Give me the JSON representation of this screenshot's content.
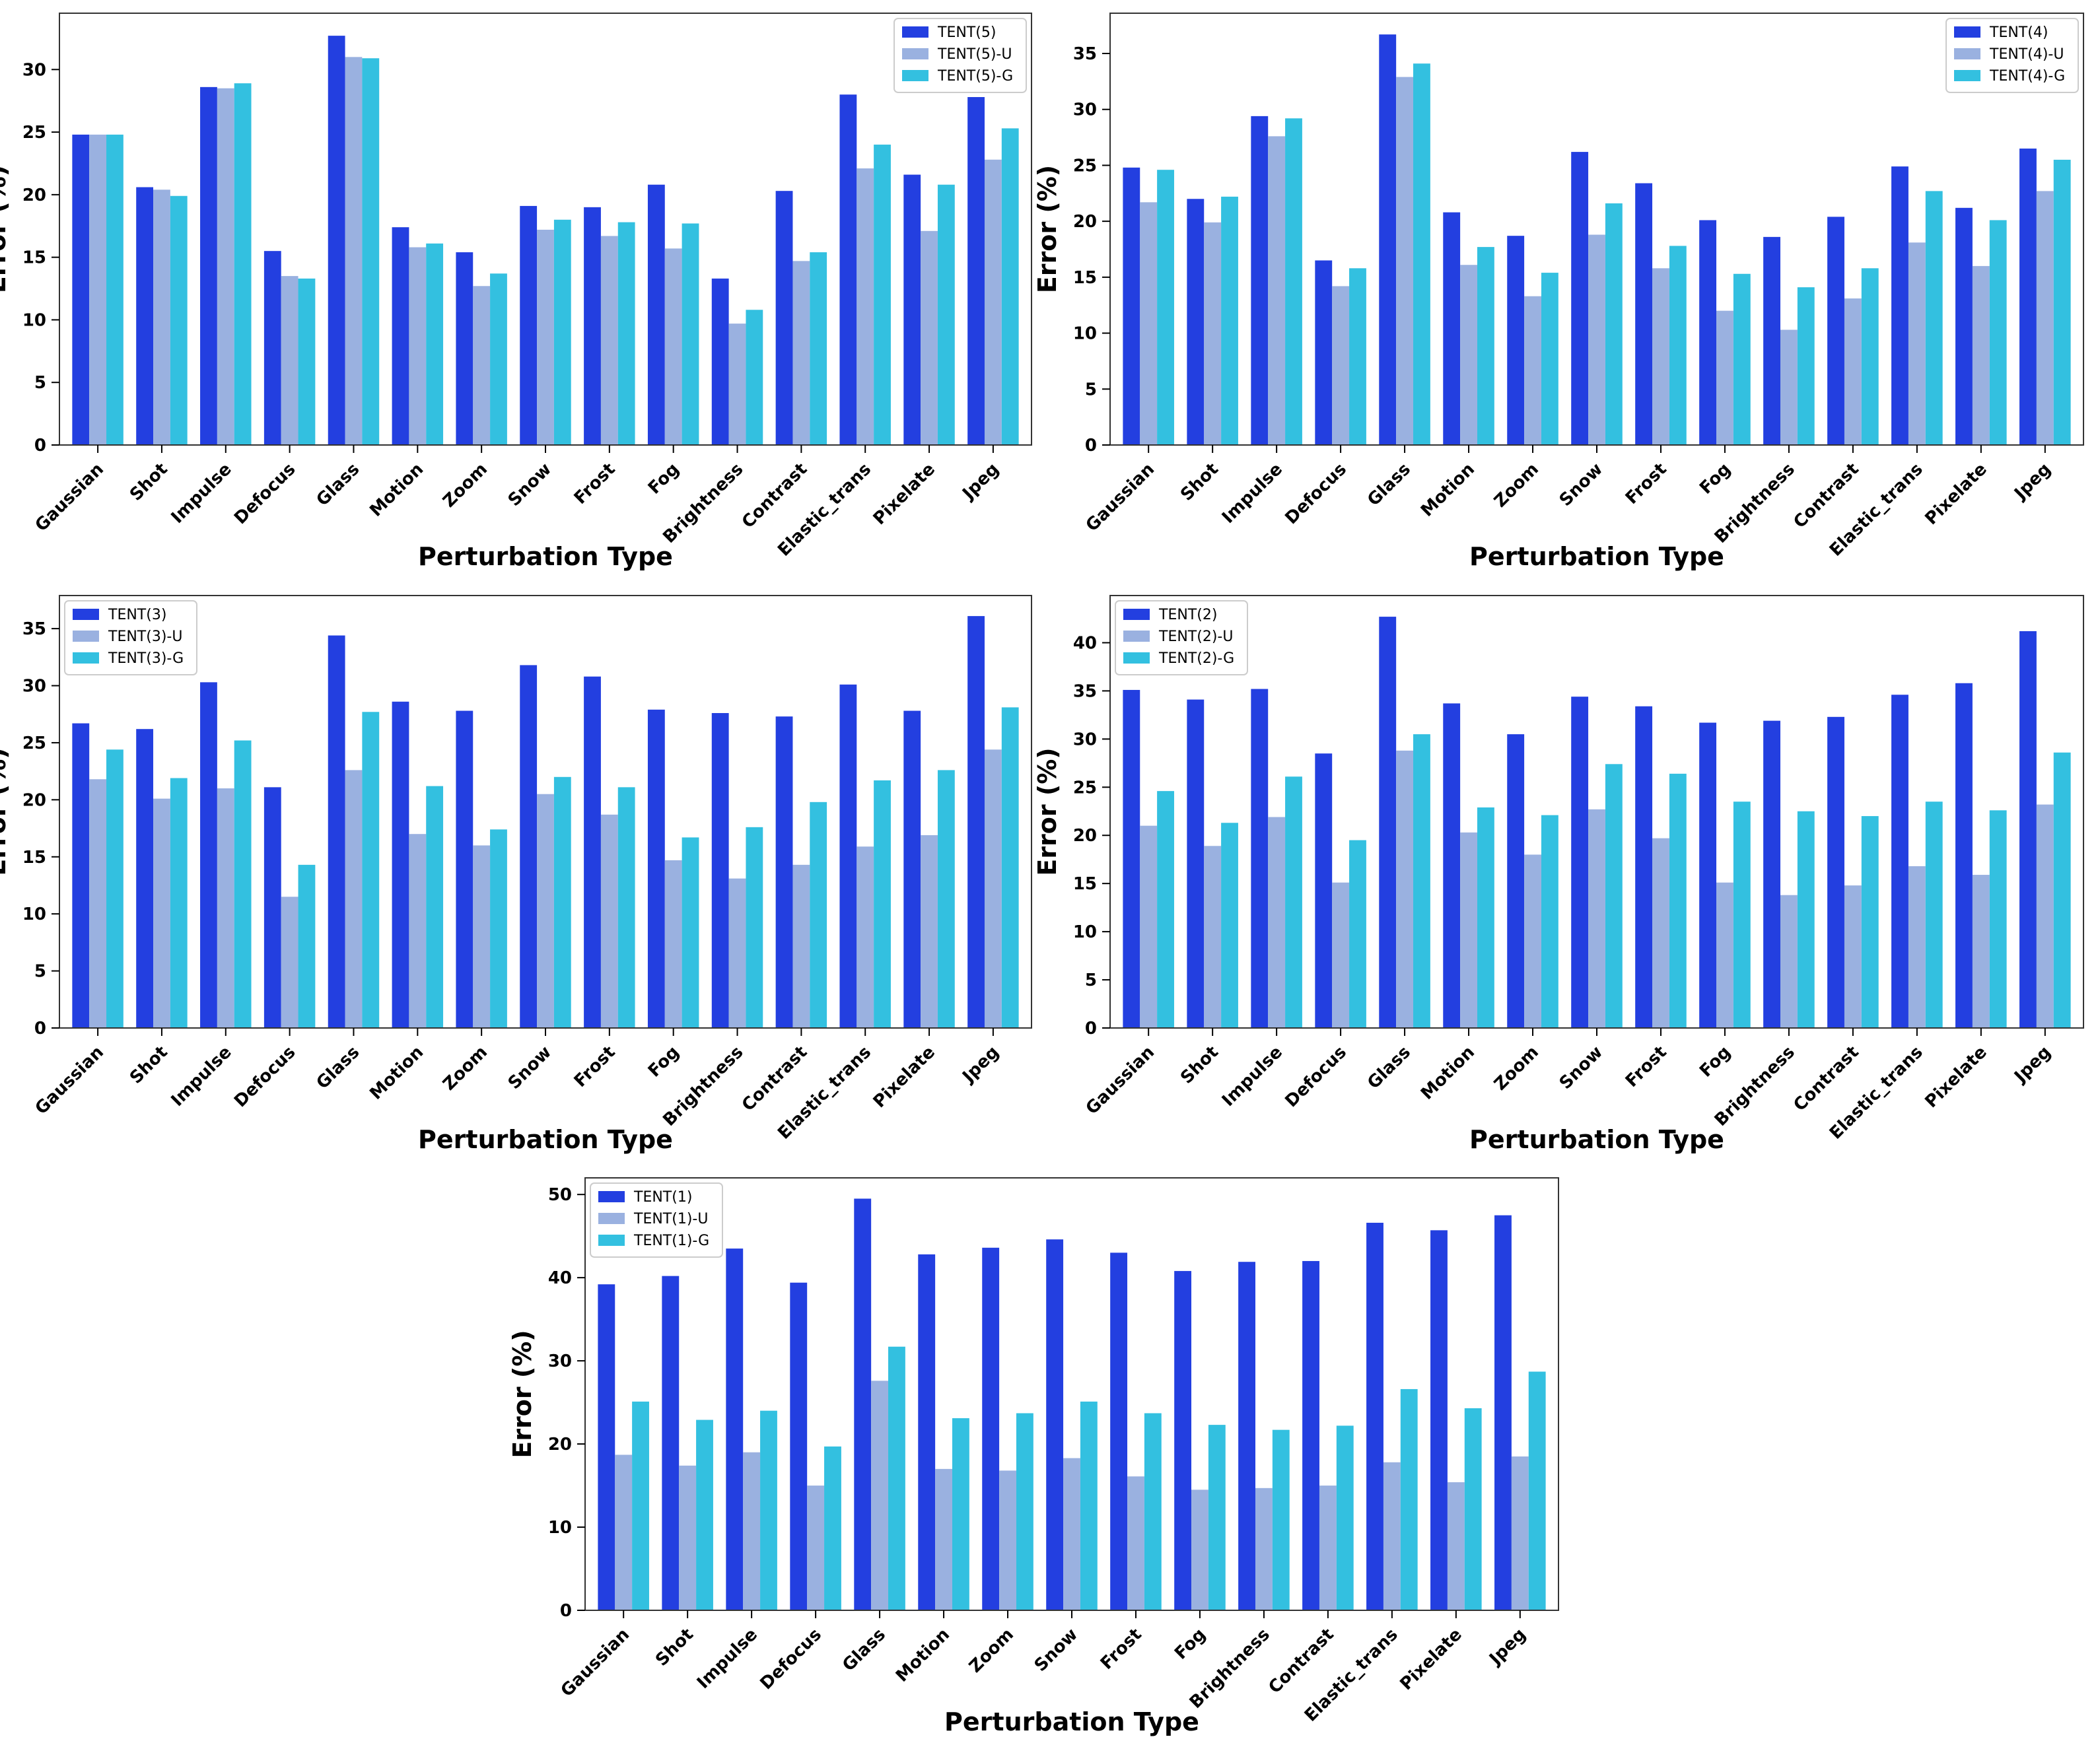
{
  "colors": {
    "base": "#233fe0",
    "u": "#9ab1e0",
    "g": "#33c0e0"
  },
  "chart_data": [
    {
      "type": "bar",
      "title": "",
      "xlabel": "Perturbation Type",
      "ylabel": "Error (%)",
      "ylim": [
        0,
        34.5
      ],
      "yticks": [
        0,
        5,
        10,
        15,
        20,
        25,
        30
      ],
      "legend_position": "top-right",
      "categories": [
        "Gaussian",
        "Shot",
        "Impulse",
        "Defocus",
        "Glass",
        "Motion",
        "Zoom",
        "Snow",
        "Frost",
        "Fog",
        "Brightness",
        "Contrast",
        "Elastic_trans",
        "Pixelate",
        "Jpeg"
      ],
      "series": [
        {
          "name": "TENT(5)",
          "color_key": "base",
          "values": [
            24.8,
            20.6,
            28.6,
            15.5,
            32.7,
            17.4,
            15.4,
            19.1,
            19.0,
            20.8,
            13.3,
            20.3,
            28.0,
            21.6,
            27.8
          ]
        },
        {
          "name": "TENT(5)-U",
          "color_key": "u",
          "values": [
            24.8,
            20.4,
            28.5,
            13.5,
            31.0,
            15.8,
            12.7,
            17.2,
            16.7,
            15.7,
            9.7,
            14.7,
            22.1,
            17.1,
            22.8
          ]
        },
        {
          "name": "TENT(5)-G",
          "color_key": "g",
          "values": [
            24.8,
            19.9,
            28.9,
            13.3,
            30.9,
            16.1,
            13.7,
            18.0,
            17.8,
            17.7,
            10.8,
            15.4,
            24.0,
            20.8,
            25.3
          ]
        }
      ]
    },
    {
      "type": "bar",
      "title": "",
      "xlabel": "Perturbation Type",
      "ylabel": "Error (%)",
      "ylim": [
        0,
        38.6
      ],
      "yticks": [
        0,
        5,
        10,
        15,
        20,
        25,
        30,
        35
      ],
      "legend_position": "top-right",
      "categories": [
        "Gaussian",
        "Shot",
        "Impulse",
        "Defocus",
        "Glass",
        "Motion",
        "Zoom",
        "Snow",
        "Frost",
        "Fog",
        "Brightness",
        "Contrast",
        "Elastic_trans",
        "Pixelate",
        "Jpeg"
      ],
      "series": [
        {
          "name": "TENT(4)",
          "color_key": "base",
          "values": [
            24.8,
            22.0,
            29.4,
            16.5,
            36.7,
            20.8,
            18.7,
            26.2,
            23.4,
            20.1,
            18.6,
            20.4,
            24.9,
            21.2,
            26.5
          ]
        },
        {
          "name": "TENT(4)-U",
          "color_key": "u",
          "values": [
            21.7,
            19.9,
            27.6,
            14.2,
            32.9,
            16.1,
            13.3,
            18.8,
            15.8,
            12.0,
            10.3,
            13.1,
            18.1,
            16.0,
            22.7
          ]
        },
        {
          "name": "TENT(4)-G",
          "color_key": "g",
          "values": [
            24.6,
            22.2,
            29.2,
            15.8,
            34.1,
            17.7,
            15.4,
            21.6,
            17.8,
            15.3,
            14.1,
            15.8,
            22.7,
            20.1,
            25.5
          ]
        }
      ]
    },
    {
      "type": "bar",
      "title": "",
      "xlabel": "Perturbation Type",
      "ylabel": "Error (%)",
      "ylim": [
        0,
        37.9
      ],
      "yticks": [
        0,
        5,
        10,
        15,
        20,
        25,
        30,
        35
      ],
      "legend_position": "top-left",
      "categories": [
        "Gaussian",
        "Shot",
        "Impulse",
        "Defocus",
        "Glass",
        "Motion",
        "Zoom",
        "Snow",
        "Frost",
        "Fog",
        "Brightness",
        "Contrast",
        "Elastic_trans",
        "Pixelate",
        "Jpeg"
      ],
      "series": [
        {
          "name": "TENT(3)",
          "color_key": "base",
          "values": [
            26.7,
            26.2,
            30.3,
            21.1,
            34.4,
            28.6,
            27.8,
            31.8,
            30.8,
            27.9,
            27.6,
            27.3,
            30.1,
            27.8,
            36.1
          ]
        },
        {
          "name": "TENT(3)-U",
          "color_key": "u",
          "values": [
            21.8,
            20.1,
            21.0,
            11.5,
            22.6,
            17.0,
            16.0,
            20.5,
            18.7,
            14.7,
            13.1,
            14.3,
            15.9,
            16.9,
            24.4
          ]
        },
        {
          "name": "TENT(3)-G",
          "color_key": "g",
          "values": [
            24.4,
            21.9,
            25.2,
            14.3,
            27.7,
            21.2,
            17.4,
            22.0,
            21.1,
            16.7,
            17.6,
            19.8,
            21.7,
            22.6,
            28.1
          ]
        }
      ]
    },
    {
      "type": "bar",
      "title": "",
      "xlabel": "Perturbation Type",
      "ylabel": "Error (%)",
      "ylim": [
        0,
        44.9
      ],
      "yticks": [
        0,
        5,
        10,
        15,
        20,
        25,
        30,
        35,
        40
      ],
      "legend_position": "top-left",
      "categories": [
        "Gaussian",
        "Shot",
        "Impulse",
        "Defocus",
        "Glass",
        "Motion",
        "Zoom",
        "Snow",
        "Frost",
        "Fog",
        "Brightness",
        "Contrast",
        "Elastic_trans",
        "Pixelate",
        "Jpeg"
      ],
      "series": [
        {
          "name": "TENT(2)",
          "color_key": "base",
          "values": [
            35.1,
            34.1,
            35.2,
            28.5,
            42.7,
            33.7,
            30.5,
            34.4,
            33.4,
            31.7,
            31.9,
            32.3,
            34.6,
            35.8,
            41.2
          ]
        },
        {
          "name": "TENT(2)-U",
          "color_key": "u",
          "values": [
            21.0,
            18.9,
            21.9,
            15.1,
            28.8,
            20.3,
            18.0,
            22.7,
            19.7,
            15.1,
            13.8,
            14.8,
            16.8,
            15.9,
            23.2
          ]
        },
        {
          "name": "TENT(2)-G",
          "color_key": "g",
          "values": [
            24.6,
            21.3,
            26.1,
            19.5,
            30.5,
            22.9,
            22.1,
            27.4,
            26.4,
            23.5,
            22.5,
            22.0,
            23.5,
            22.6,
            28.6
          ]
        }
      ]
    },
    {
      "type": "bar",
      "title": "",
      "xlabel": "Perturbation Type",
      "ylabel": "Error (%)",
      "ylim": [
        0,
        52.0
      ],
      "yticks": [
        0,
        10,
        20,
        30,
        40,
        50
      ],
      "legend_position": "top-left",
      "categories": [
        "Gaussian",
        "Shot",
        "Impulse",
        "Defocus",
        "Glass",
        "Motion",
        "Zoom",
        "Snow",
        "Frost",
        "Fog",
        "Brightness",
        "Contrast",
        "Elastic_trans",
        "Pixelate",
        "Jpeg"
      ],
      "series": [
        {
          "name": "TENT(1)",
          "color_key": "base",
          "values": [
            39.2,
            40.2,
            43.5,
            39.4,
            49.5,
            42.8,
            43.6,
            44.6,
            43.0,
            40.8,
            41.9,
            42.0,
            46.6,
            45.7,
            47.5
          ]
        },
        {
          "name": "TENT(1)-U",
          "color_key": "u",
          "values": [
            18.7,
            17.4,
            19.0,
            15.0,
            27.6,
            17.0,
            16.8,
            18.3,
            16.1,
            14.5,
            14.7,
            15.0,
            17.8,
            15.4,
            18.5
          ]
        },
        {
          "name": "TENT(1)-G",
          "color_key": "g",
          "values": [
            25.1,
            22.9,
            24.0,
            19.7,
            31.7,
            23.1,
            23.7,
            25.1,
            23.7,
            22.3,
            21.7,
            22.2,
            26.6,
            24.3,
            28.7
          ]
        }
      ]
    }
  ]
}
